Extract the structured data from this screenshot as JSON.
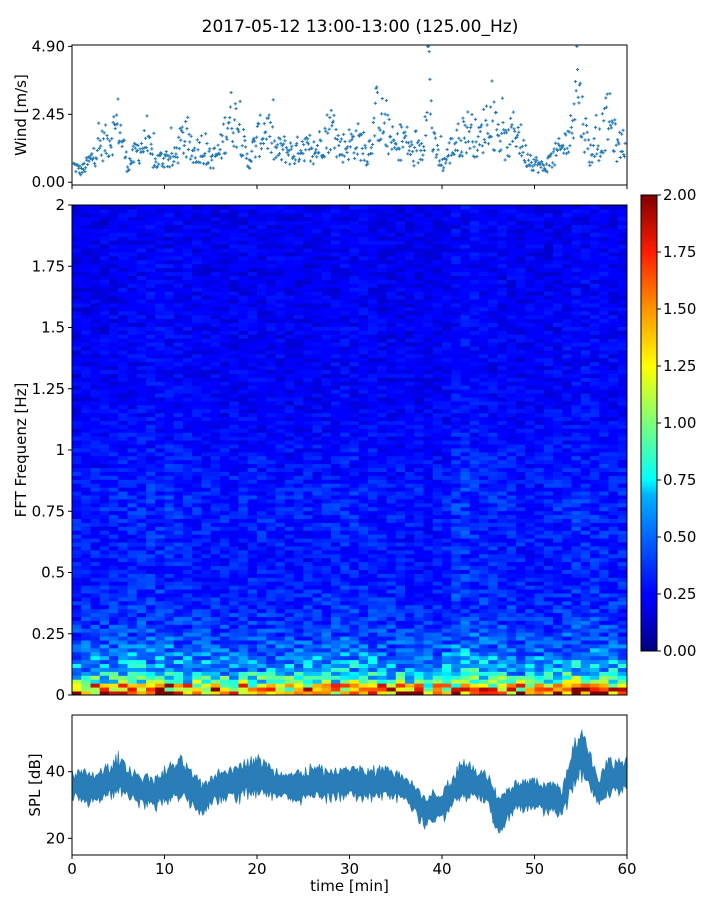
{
  "figure": {
    "title": "2017-05-12 13:00-13:00 (125.00_Hz)"
  },
  "chart_data": [
    {
      "type": "scatter",
      "panel": "wind",
      "ylabel": "Wind [m/s]",
      "xlim": [
        0,
        60
      ],
      "ylim": [
        -0.1,
        4.95
      ],
      "yticks": [
        0.0,
        2.45,
        4.9
      ],
      "ytick_labels": [
        "0.00",
        "2.45",
        "4.90"
      ],
      "marker": "+",
      "color": "#1f77b4",
      "points_x_min": [
        0.2,
        1.0,
        2.0,
        3.0,
        4.0,
        5.0,
        6.0,
        7.0,
        8.0,
        9.0,
        10.0,
        11.0,
        12.0,
        13.0,
        14.0,
        15.0,
        16.0,
        17.0,
        18.0,
        19.0,
        20.0,
        21.0,
        22.0,
        23.0,
        24.0,
        25.0,
        26.0,
        27.0,
        28.0,
        29.0,
        30.0,
        31.0,
        32.0,
        33.0,
        34.0,
        35.0,
        36.0,
        37.0,
        38.0,
        38.5,
        39.0,
        40.0,
        41.0,
        42.0,
        43.0,
        44.0,
        45.0,
        46.0,
        47.0,
        48.0,
        49.0,
        50.0,
        51.0,
        52.0,
        53.0,
        54.0,
        54.5,
        55.0,
        56.0,
        57.0,
        58.0,
        59.0,
        59.8
      ],
      "points_y_ms": [
        0.6,
        0.4,
        0.8,
        1.3,
        1.5,
        2.2,
        0.6,
        1.1,
        1.4,
        0.7,
        0.9,
        0.8,
        1.6,
        1.0,
        1.3,
        0.8,
        1.1,
        2.4,
        2.1,
        0.7,
        1.5,
        2.0,
        1.1,
        1.2,
        1.0,
        1.4,
        0.9,
        1.5,
        2.0,
        1.2,
        1.4,
        1.5,
        1.0,
        2.6,
        1.8,
        1.2,
        1.6,
        0.9,
        1.3,
        4.9,
        1.4,
        0.6,
        1.2,
        1.6,
        1.9,
        1.4,
        2.4,
        1.8,
        1.3,
        2.0,
        1.0,
        0.7,
        0.5,
        0.9,
        1.2,
        1.8,
        4.4,
        2.6,
        1.0,
        1.4,
        2.4,
        1.2,
        1.6
      ]
    },
    {
      "type": "heatmap",
      "panel": "spectrogram",
      "ylabel": "FFT Frequenz [Hz]",
      "xlim": [
        0,
        60
      ],
      "ylim": [
        0,
        2
      ],
      "yticks": [
        0,
        0.25,
        0.5,
        0.75,
        1,
        1.25,
        1.5,
        1.75,
        2
      ],
      "ytick_labels": [
        "0",
        "0.25",
        "0.5",
        "0.75",
        "1",
        "1.25",
        "1.5",
        "1.75",
        "2"
      ],
      "colormap": "jet",
      "clim": [
        0.0,
        2.0
      ],
      "colorbar_ticks": [
        0.0,
        0.25,
        0.5,
        0.75,
        1.0,
        1.25,
        1.5,
        1.75,
        2.0
      ],
      "colorbar_tick_labels": [
        "0.00",
        "0.25",
        "0.50",
        "0.75",
        "1.00",
        "1.25",
        "1.50",
        "1.75",
        "2.00"
      ],
      "freq_profile_hz": [
        0.0,
        0.05,
        0.1,
        0.2,
        0.3,
        0.5,
        0.8,
        1.2,
        2.0
      ],
      "freq_profile_level": [
        1.3,
        0.9,
        0.6,
        0.45,
        0.35,
        0.28,
        0.3,
        0.22,
        0.2
      ],
      "time_profile_min": [
        0,
        5,
        10,
        15,
        20,
        25,
        30,
        35,
        40,
        42,
        45,
        50,
        55,
        60
      ],
      "time_profile_factor": [
        1.0,
        1.05,
        1.15,
        1.0,
        1.05,
        1.0,
        1.1,
        1.0,
        1.0,
        1.25,
        1.1,
        1.0,
        1.15,
        1.05
      ]
    },
    {
      "type": "area",
      "panel": "spl",
      "ylabel": "SPL [dB]",
      "xlabel": "time [min]",
      "xlim": [
        0,
        60
      ],
      "ylim": [
        15,
        57
      ],
      "yticks": [
        20,
        40
      ],
      "ytick_labels": [
        "20",
        "40"
      ],
      "xticks": [
        0,
        10,
        20,
        30,
        40,
        50,
        60
      ],
      "xtick_labels": [
        "0",
        "10",
        "20",
        "30",
        "40",
        "50",
        "60"
      ],
      "color": "#1f77b4",
      "x_min": [
        0,
        2,
        4,
        5,
        7,
        9,
        11,
        12,
        14,
        16,
        18,
        20,
        22,
        24,
        26,
        28,
        30,
        32,
        34,
        36,
        37,
        38,
        39,
        40,
        41,
        42,
        43,
        44,
        45,
        46,
        47,
        48,
        50,
        52,
        53,
        54,
        55,
        56,
        57,
        58,
        60
      ],
      "mean_db": [
        36,
        35,
        37,
        39,
        35,
        34,
        37,
        38,
        32,
        36,
        37,
        39,
        36,
        35,
        37,
        36,
        37,
        36,
        37,
        35,
        32,
        28,
        29,
        30,
        33,
        38,
        37,
        36,
        35,
        27,
        30,
        33,
        33,
        32,
        31,
        40,
        46,
        40,
        34,
        38,
        39
      ],
      "spread_db": [
        4,
        4,
        4,
        5,
        4,
        4,
        5,
        5,
        4,
        4,
        5,
        5,
        4,
        4,
        4,
        4,
        4,
        4,
        4,
        4,
        4,
        4,
        4,
        4,
        4,
        5,
        5,
        4,
        4,
        5,
        4,
        4,
        4,
        4,
        4,
        6,
        7,
        5,
        4,
        5,
        4
      ]
    }
  ]
}
